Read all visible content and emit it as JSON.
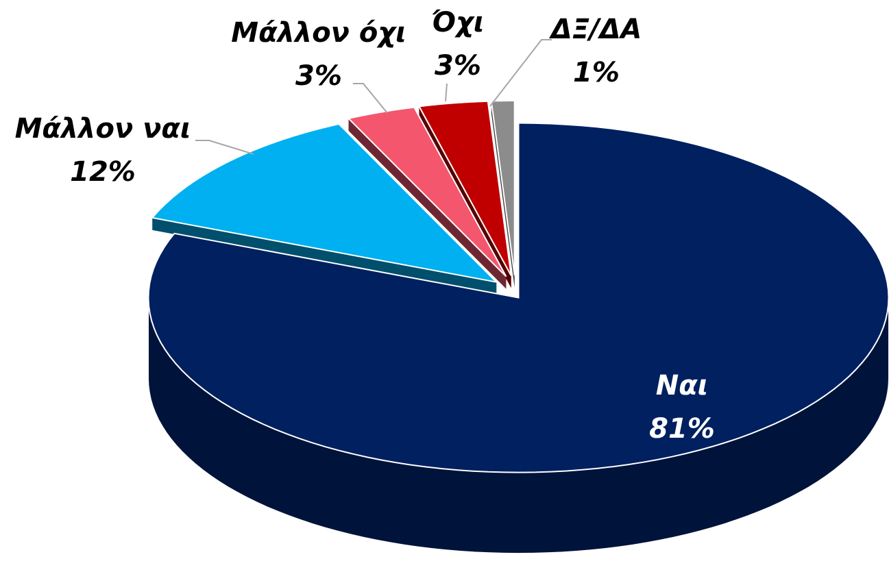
{
  "chart_data": {
    "type": "pie",
    "categories": [
      "Ναι",
      "Μάλλον ναι",
      "Μάλλον όχι",
      "Όχι",
      "ΔΞ/ΔΑ"
    ],
    "values": [
      81,
      12,
      3,
      3,
      1
    ],
    "value_labels": [
      "81%",
      "12%",
      "3%",
      "3%",
      "1%"
    ],
    "colors": [
      "#002060",
      "#00b0f0",
      "#f4566e",
      "#c00000",
      "#8c8c8c"
    ]
  }
}
